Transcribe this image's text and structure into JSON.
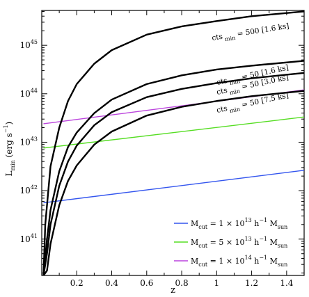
{
  "chart_data": {
    "type": "line",
    "title": "",
    "xlabel": "z",
    "ylabel_main": "L",
    "ylabel_sub": "min",
    "ylabel_unit": "(erg s",
    "ylabel_unit_exp": "−1",
    "ylabel_unit_close": ")",
    "xlim": [
      0.0,
      1.5
    ],
    "ylim_log10": [
      40.25,
      45.72
    ],
    "log_y": true,
    "grid": false,
    "legend_position": "bottom-right",
    "x_ticks": [
      0.2,
      0.4,
      0.6,
      0.8,
      1,
      1.2,
      1.4
    ],
    "x_tick_labels": [
      "0.2",
      "0.4",
      "0.6",
      "0.8",
      "1",
      "1.2",
      "1.4"
    ],
    "y_tick_exponents": [
      41,
      42,
      43,
      44,
      45
    ],
    "y_tick_base": "10",
    "threshold_series": [
      {
        "label_pre": "cts",
        "label_sub": "min",
        "label_post": "= 500  [1.6 ks]",
        "color": "#000000",
        "points": [
          [
            0.01,
            40.25
          ],
          [
            0.02,
            41.3
          ],
          [
            0.05,
            42.5
          ],
          [
            0.1,
            43.3
          ],
          [
            0.15,
            43.85
          ],
          [
            0.2,
            44.2
          ],
          [
            0.3,
            44.62
          ],
          [
            0.4,
            44.9
          ],
          [
            0.6,
            45.22
          ],
          [
            0.8,
            45.39
          ],
          [
            1.0,
            45.5
          ],
          [
            1.2,
            45.6
          ],
          [
            1.5,
            45.7
          ]
        ]
      },
      {
        "label_pre": "cts",
        "label_sub": "min",
        "label_post": "= 50  [1.6 ks]",
        "color": "#000000",
        "points": [
          [
            0.01,
            40.25
          ],
          [
            0.03,
            41.0
          ],
          [
            0.05,
            41.6
          ],
          [
            0.1,
            42.4
          ],
          [
            0.15,
            42.9
          ],
          [
            0.2,
            43.2
          ],
          [
            0.3,
            43.6
          ],
          [
            0.4,
            43.88
          ],
          [
            0.6,
            44.2
          ],
          [
            0.8,
            44.38
          ],
          [
            1.0,
            44.5
          ],
          [
            1.2,
            44.58
          ],
          [
            1.5,
            44.68
          ]
        ]
      },
      {
        "label_pre": "cts",
        "label_sub": "min",
        "label_post": "= 50  [3.0 ks]",
        "color": "#000000",
        "points": [
          [
            0.01,
            40.25
          ],
          [
            0.03,
            40.7
          ],
          [
            0.05,
            41.3
          ],
          [
            0.1,
            42.1
          ],
          [
            0.15,
            42.6
          ],
          [
            0.2,
            42.93
          ],
          [
            0.3,
            43.35
          ],
          [
            0.4,
            43.62
          ],
          [
            0.6,
            43.93
          ],
          [
            0.8,
            44.1
          ],
          [
            1.0,
            44.22
          ],
          [
            1.2,
            44.32
          ],
          [
            1.5,
            44.43
          ]
        ]
      },
      {
        "label_pre": "cts",
        "label_sub": "min",
        "label_post": "= 50  [7.5 ks]",
        "color": "#000000",
        "points": [
          [
            0.01,
            40.25
          ],
          [
            0.03,
            40.35
          ],
          [
            0.05,
            40.9
          ],
          [
            0.1,
            41.7
          ],
          [
            0.15,
            42.2
          ],
          [
            0.2,
            42.52
          ],
          [
            0.3,
            42.95
          ],
          [
            0.4,
            43.22
          ],
          [
            0.6,
            43.55
          ],
          [
            0.8,
            43.73
          ],
          [
            1.0,
            43.85
          ],
          [
            1.2,
            43.95
          ],
          [
            1.5,
            44.06
          ]
        ]
      }
    ],
    "mass_series": [
      {
        "label_pre": "M",
        "label_sub": "cut",
        "label_mid": "= 1 × 10",
        "label_exp": "13",
        "label_post": " h",
        "label_exp2": "−1",
        "label_end": " M",
        "label_sub2": "sun",
        "color": "#3355ee",
        "points": [
          [
            0.01,
            41.75
          ],
          [
            1.5,
            42.42
          ]
        ]
      },
      {
        "label_pre": "M",
        "label_sub": "cut",
        "label_mid": "= 5 × 10",
        "label_exp": "13",
        "label_post": " h",
        "label_exp2": "−1",
        "label_end": " M",
        "label_sub2": "sun",
        "color": "#55dd22",
        "points": [
          [
            0.01,
            42.88
          ],
          [
            1.5,
            43.52
          ]
        ]
      },
      {
        "label_pre": "M",
        "label_sub": "cut",
        "label_mid": "= 1 × 10",
        "label_exp": "14",
        "label_post": " h",
        "label_exp2": "−1",
        "label_end": " M",
        "label_sub2": "sun",
        "color": "#bb44dd",
        "points": [
          [
            0.01,
            43.38
          ],
          [
            1.5,
            44.08
          ]
        ]
      }
    ]
  }
}
